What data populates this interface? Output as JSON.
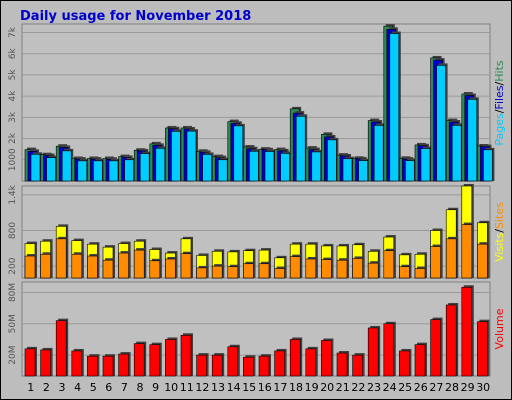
{
  "chart_data": {
    "type": "bar",
    "title": "Daily usage for November 2018",
    "days": [
      "1",
      "2",
      "3",
      "4",
      "5",
      "6",
      "7",
      "8",
      "9",
      "10",
      "11",
      "12",
      "13",
      "14",
      "15",
      "16",
      "17",
      "18",
      "19",
      "20",
      "21",
      "22",
      "23",
      "24",
      "25",
      "26",
      "27",
      "28",
      "29",
      "30"
    ],
    "weekend_days": [
      3,
      4,
      10,
      11,
      17,
      18,
      24,
      25
    ],
    "colors": {
      "hits": "#2e8b57",
      "files": "#0000cc",
      "pages": "#00ccff",
      "visits": "#ffff00",
      "sites": "#ff8c00",
      "volume": "#ff0000",
      "title": "#0000cc",
      "weekend": "#008000",
      "weekday": "#000000"
    },
    "panels": {
      "top": {
        "legend": [
          "Pages",
          "/",
          "Files",
          "/",
          "Hits"
        ],
        "ylim": [
          0,
          7400
        ],
        "ticks": [
          {
            "v": 1000,
            "label": "1000"
          },
          {
            "v": 2000,
            "label": "2k"
          },
          {
            "v": 3000,
            "label": "3k"
          },
          {
            "v": 4000,
            "label": "4k"
          },
          {
            "v": 5000,
            "label": "5k"
          },
          {
            "v": 6000,
            "label": "6k"
          },
          {
            "v": 7000,
            "label": "7k"
          }
        ],
        "series": [
          {
            "name": "Hits",
            "values": [
              1480,
              1240,
              1640,
              1060,
              1060,
              1060,
              1150,
              1450,
              1750,
              2500,
              2500,
              1400,
              1150,
              2800,
              1600,
              1500,
              1480,
              3400,
              1550,
              2200,
              1220,
              1070,
              2850,
              7300,
              1070,
              1700,
              5800,
              2850,
              4100,
              1650
            ]
          },
          {
            "name": "Files",
            "values": [
              1400,
              1200,
              1580,
              1030,
              1030,
              1020,
              1110,
              1420,
              1680,
              2460,
              2450,
              1350,
              1100,
              2720,
              1520,
              1470,
              1420,
              3200,
              1480,
              2080,
              1180,
              1040,
              2780,
              7150,
              1030,
              1660,
              5700,
              2780,
              4030,
              1620
            ]
          },
          {
            "name": "Pages",
            "values": [
              1260,
              1100,
              1420,
              950,
              950,
              950,
              1000,
              1290,
              1540,
              2340,
              2350,
              1250,
              1000,
              2600,
              1400,
              1390,
              1300,
              3050,
              1370,
              1940,
              1050,
              960,
              2620,
              6950,
              960,
              1530,
              5450,
              2620,
              3850,
              1470
            ]
          }
        ]
      },
      "middle": {
        "legend": [
          "Visits",
          "/",
          "Sites"
        ],
        "ylim": [
          0,
          1550
        ],
        "ticks": [
          {
            "v": 200,
            "label": "200"
          },
          {
            "v": 800,
            "label": "800"
          },
          {
            "v": 1400,
            "label": "1.4k"
          }
        ],
        "series": [
          {
            "name": "Visits",
            "values": [
              580,
              620,
              870,
              630,
              570,
              520,
              580,
              620,
              480,
              420,
              660,
              380,
              450,
              440,
              460,
              470,
              340,
              570,
              570,
              540,
              540,
              560,
              450,
              690,
              390,
              400,
              800,
              1150,
              1550,
              930
            ]
          },
          {
            "name": "Sites",
            "values": [
              370,
              400,
              660,
              400,
              370,
              300,
              420,
              470,
              290,
              320,
              410,
              170,
              200,
              190,
              240,
              240,
              160,
              360,
              320,
              310,
              300,
              330,
              250,
              460,
              190,
              160,
              530,
              660,
              900,
              570
            ]
          }
        ]
      },
      "bottom": {
        "legend": [
          "Volume"
        ],
        "ylim": [
          0,
          90
        ],
        "ticks": [
          {
            "v": 20,
            "label": "20M"
          },
          {
            "v": 50,
            "label": "50M"
          },
          {
            "v": 80,
            "label": "80M"
          }
        ],
        "series": [
          {
            "name": "Volume",
            "values": [
              26,
              25,
              53,
              24,
              19,
              19,
              21,
              31,
              30,
              35,
              39,
              20,
              20,
              28,
              18,
              19,
              24,
              35,
              26,
              34,
              22,
              20,
              46,
              50,
              24,
              30,
              54,
              68,
              85,
              52
            ]
          }
        ]
      }
    }
  }
}
